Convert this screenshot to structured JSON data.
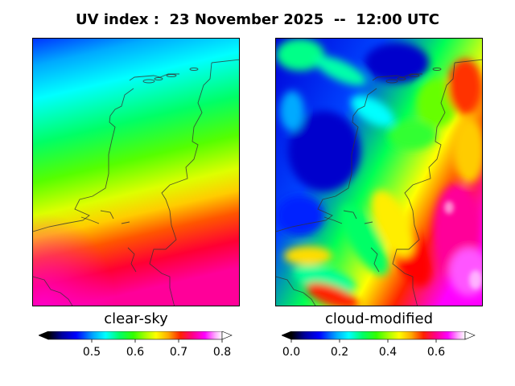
{
  "title": "UV index :  23 November 2025  --  12:00 UTC",
  "panels": {
    "clear_sky": {
      "label": "clear-sky",
      "colorbar": {
        "ticks": [
          "0.5",
          "0.6",
          "0.7",
          "0.8"
        ],
        "min": 0.4,
        "max": 0.8
      }
    },
    "cloud_modified": {
      "label": "cloud-modified",
      "colorbar": {
        "ticks": [
          "0.0",
          "0.2",
          "0.4",
          "0.6"
        ],
        "min": 0.0,
        "max": 0.72
      }
    }
  },
  "colormap": {
    "name": "gist_ncar-like",
    "stops": [
      "#000000",
      "#0000a0",
      "#0000ff",
      "#00aaff",
      "#00ffff",
      "#00ff66",
      "#33ff00",
      "#aaff00",
      "#ffff00",
      "#ffaa00",
      "#ff2200",
      "#ff0088",
      "#ff00ff",
      "#ffaaff",
      "#ffffff"
    ]
  }
}
